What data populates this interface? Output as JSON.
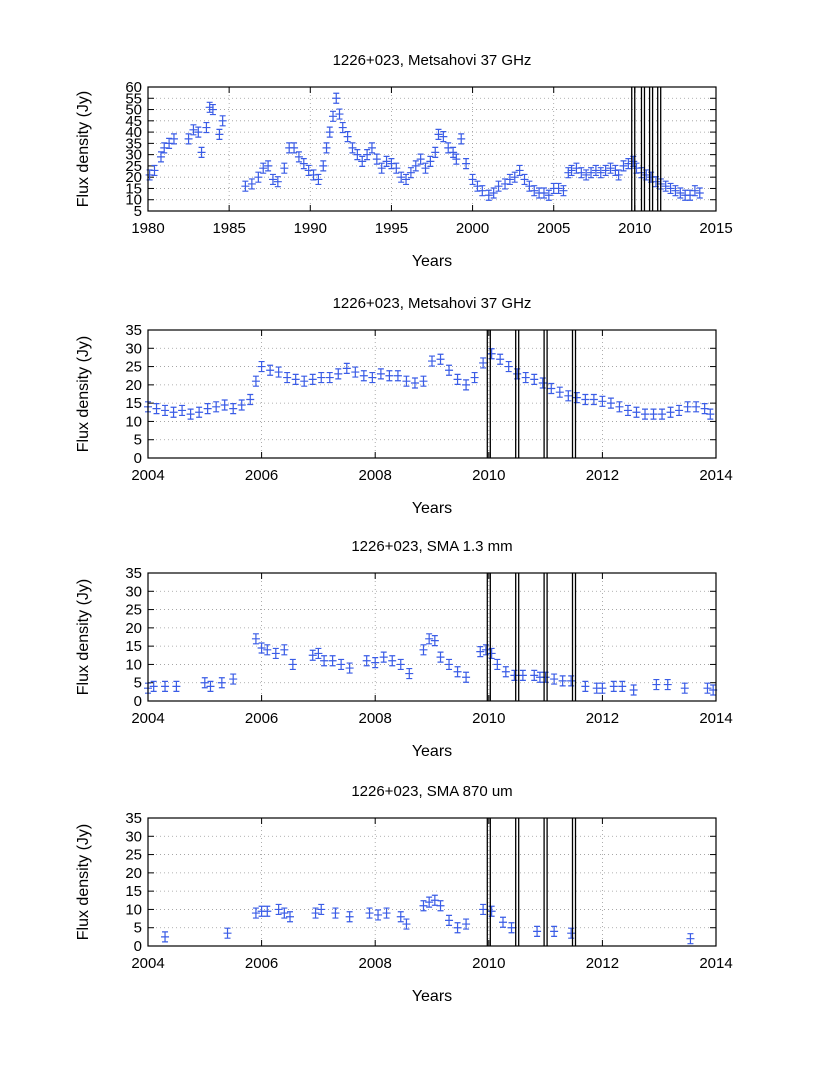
{
  "colors": {
    "data": "#3a5ce6",
    "axis": "#000000",
    "grid": "#9a9a9a",
    "event_line": "#000000"
  },
  "chart_data": [
    {
      "type": "scatter",
      "title": "1226+023, Metsahovi 37 GHz",
      "xlabel": "Years",
      "ylabel": "Flux density (Jy)",
      "xlim": [
        1980,
        2015
      ],
      "ylim": [
        5,
        60
      ],
      "xticks": [
        1980,
        1985,
        1990,
        1995,
        2000,
        2005,
        2010,
        2015
      ],
      "yticks": [
        5,
        10,
        15,
        20,
        25,
        30,
        35,
        40,
        45,
        50,
        55,
        60
      ],
      "grid": true,
      "event_lines": [
        2009.9,
        2010.5,
        2011.0,
        2011.5
      ],
      "series": [
        {
          "name": "Metsahovi 37 GHz",
          "x": [
            1980.1,
            1980.4,
            1980.8,
            1981.0,
            1981.3,
            1981.6,
            1982.5,
            1982.8,
            1983.1,
            1983.3,
            1983.6,
            1983.8,
            1984.0,
            1984.4,
            1984.6,
            1986.0,
            1986.4,
            1986.8,
            1987.1,
            1987.4,
            1987.7,
            1988.0,
            1988.4,
            1988.7,
            1989.0,
            1989.3,
            1989.6,
            1989.9,
            1990.2,
            1990.5,
            1990.8,
            1991.0,
            1991.2,
            1991.4,
            1991.6,
            1991.8,
            1992.0,
            1992.3,
            1992.6,
            1992.9,
            1993.2,
            1993.5,
            1993.8,
            1994.1,
            1994.4,
            1994.7,
            1995.0,
            1995.3,
            1995.6,
            1995.9,
            1996.2,
            1996.5,
            1996.8,
            1997.1,
            1997.4,
            1997.7,
            1997.9,
            1998.2,
            1998.5,
            1998.8,
            1999.0,
            1999.3,
            1999.6,
            2000.0,
            2000.3,
            2000.6,
            2001.0,
            2001.3,
            2001.6,
            2002.0,
            2002.3,
            2002.6,
            2002.9,
            2003.2,
            2003.5,
            2003.8,
            2004.1,
            2004.4,
            2004.7,
            2005.0,
            2005.3,
            2005.6,
            2005.9,
            2006.1,
            2006.4,
            2006.7,
            2007.0,
            2007.3,
            2007.6,
            2007.9,
            2008.2,
            2008.5,
            2008.8,
            2009.0,
            2009.3,
            2009.6,
            2009.9,
            2010.1,
            2010.4,
            2010.7,
            2011.0,
            2011.3,
            2011.6,
            2011.9,
            2012.2,
            2012.5,
            2012.8,
            2013.1,
            2013.4,
            2013.7,
            2014.0
          ],
          "y": [
            21,
            23,
            29,
            33,
            35,
            37,
            37,
            41,
            40,
            31,
            42,
            51,
            50,
            39,
            45,
            16,
            17,
            20,
            24,
            25,
            19,
            18,
            24,
            33,
            33,
            29,
            26,
            23,
            21,
            19,
            25,
            33,
            40,
            47,
            55,
            48,
            42,
            38,
            33,
            30,
            27,
            30,
            33,
            28,
            24,
            27,
            26,
            24,
            20,
            19,
            22,
            25,
            28,
            24,
            27,
            31,
            39,
            38,
            33,
            31,
            28,
            37,
            26,
            19,
            16,
            14,
            12,
            13,
            16,
            17,
            19,
            20,
            23,
            19,
            16,
            14,
            13,
            13,
            12,
            15,
            15,
            14,
            22,
            23,
            24,
            22,
            21,
            22,
            23,
            22,
            23,
            24,
            23,
            21,
            25,
            26,
            27,
            24,
            22,
            21,
            20,
            18,
            17,
            16,
            15,
            14,
            13,
            12,
            12,
            14,
            13
          ]
        }
      ]
    },
    {
      "type": "scatter",
      "title": "1226+023, Metsahovi 37 GHz",
      "xlabel": "Years",
      "ylabel": "Flux density (Jy)",
      "xlim": [
        2004,
        2014
      ],
      "ylim": [
        0,
        35
      ],
      "xticks": [
        2004,
        2006,
        2008,
        2010,
        2012,
        2014
      ],
      "yticks": [
        0,
        5,
        10,
        15,
        20,
        25,
        30,
        35
      ],
      "grid": true,
      "event_lines": [
        2010.0,
        2010.5,
        2011.0,
        2011.5
      ],
      "series": [
        {
          "name": "Metsahovi 37 GHz",
          "x": [
            2004.0,
            2004.15,
            2004.3,
            2004.45,
            2004.6,
            2004.75,
            2004.9,
            2005.05,
            2005.2,
            2005.35,
            2005.5,
            2005.65,
            2005.8,
            2005.9,
            2006.0,
            2006.15,
            2006.3,
            2006.45,
            2006.6,
            2006.75,
            2006.9,
            2007.05,
            2007.2,
            2007.35,
            2007.5,
            2007.65,
            2007.8,
            2007.95,
            2008.1,
            2008.25,
            2008.4,
            2008.55,
            2008.7,
            2008.85,
            2009.0,
            2009.15,
            2009.3,
            2009.45,
            2009.6,
            2009.75,
            2009.9,
            2010.05,
            2010.2,
            2010.35,
            2010.5,
            2010.65,
            2010.8,
            2010.95,
            2011.1,
            2011.25,
            2011.4,
            2011.55,
            2011.7,
            2011.85,
            2012.0,
            2012.15,
            2012.3,
            2012.45,
            2012.6,
            2012.75,
            2012.9,
            2013.05,
            2013.2,
            2013.35,
            2013.5,
            2013.65,
            2013.8,
            2013.9
          ],
          "y": [
            14,
            13.5,
            13,
            12.5,
            13,
            12,
            12.5,
            13.5,
            14,
            14.5,
            13.5,
            14.5,
            16,
            21,
            25,
            24,
            23.5,
            22,
            21.5,
            21,
            21.5,
            22,
            22,
            23,
            24.5,
            23.5,
            22.5,
            22,
            23,
            22.5,
            22.5,
            21,
            20.5,
            21,
            26.5,
            27,
            24,
            21.5,
            20,
            22,
            26,
            28.5,
            27,
            25,
            23,
            22,
            21.5,
            20.5,
            19,
            18,
            17,
            16.5,
            16,
            16,
            15.5,
            15,
            14,
            13,
            12.5,
            12,
            12,
            12,
            12.5,
            13,
            14,
            14,
            13.5,
            12
          ]
        }
      ]
    },
    {
      "type": "scatter",
      "title": "1226+023, SMA 1.3 mm",
      "xlabel": "Years",
      "ylabel": "Flux density (Jy)",
      "xlim": [
        2004,
        2014
      ],
      "ylim": [
        0,
        35
      ],
      "xticks": [
        2004,
        2006,
        2008,
        2010,
        2012,
        2014
      ],
      "yticks": [
        0,
        5,
        10,
        15,
        20,
        25,
        30,
        35
      ],
      "grid": true,
      "event_lines": [
        2010.0,
        2010.5,
        2011.0,
        2011.5
      ],
      "series": [
        {
          "name": "SMA 1.3 mm",
          "x": [
            2004.0,
            2004.1,
            2004.3,
            2004.5,
            2005.0,
            2005.1,
            2005.3,
            2005.5,
            2005.9,
            2006.0,
            2006.1,
            2006.25,
            2006.4,
            2006.55,
            2006.9,
            2007.0,
            2007.1,
            2007.25,
            2007.4,
            2007.55,
            2007.85,
            2008.0,
            2008.15,
            2008.3,
            2008.45,
            2008.6,
            2008.85,
            2008.95,
            2009.05,
            2009.15,
            2009.3,
            2009.45,
            2009.6,
            2009.85,
            2009.95,
            2010.05,
            2010.15,
            2010.3,
            2010.45,
            2010.6,
            2010.8,
            2010.9,
            2011.0,
            2011.15,
            2011.3,
            2011.45,
            2011.7,
            2011.9,
            2012.0,
            2012.2,
            2012.35,
            2012.55,
            2012.95,
            2013.15,
            2013.45,
            2013.85,
            2013.95
          ],
          "y": [
            3.5,
            4,
            4,
            4,
            5,
            4,
            5,
            6,
            17,
            14.5,
            14,
            13,
            14,
            10,
            12.5,
            13,
            11,
            11,
            10,
            9,
            11,
            10.5,
            12,
            11,
            10,
            7.5,
            14,
            17,
            16.5,
            12,
            10,
            8,
            6.5,
            13.5,
            14,
            13,
            10,
            8,
            7,
            7,
            7,
            6.5,
            6.5,
            6,
            5.5,
            5.5,
            4,
            3.5,
            3.5,
            4,
            4,
            3,
            4.5,
            4.5,
            3.5,
            3.5,
            3
          ]
        }
      ]
    },
    {
      "type": "scatter",
      "title": "1226+023, SMA 870 um",
      "xlabel": "Years",
      "ylabel": "Flux density (Jy)",
      "xlim": [
        2004,
        2014
      ],
      "ylim": [
        0,
        35
      ],
      "xticks": [
        2004,
        2006,
        2008,
        2010,
        2012,
        2014
      ],
      "yticks": [
        0,
        5,
        10,
        15,
        20,
        25,
        30,
        35
      ],
      "grid": true,
      "event_lines": [
        2010.0,
        2010.5,
        2011.0,
        2011.5
      ],
      "series": [
        {
          "name": "SMA 870 um",
          "x": [
            2004.3,
            2005.4,
            2005.9,
            2006.0,
            2006.1,
            2006.3,
            2006.4,
            2006.5,
            2006.95,
            2007.05,
            2007.3,
            2007.55,
            2007.9,
            2008.05,
            2008.2,
            2008.45,
            2008.55,
            2008.85,
            2008.95,
            2009.05,
            2009.15,
            2009.3,
            2009.45,
            2009.6,
            2009.9,
            2010.05,
            2010.25,
            2010.4,
            2010.85,
            2011.15,
            2011.45,
            2013.55
          ],
          "y": [
            2.5,
            3.5,
            9,
            9.5,
            9.5,
            10,
            9,
            8,
            9,
            10,
            9,
            8,
            9,
            8.5,
            9,
            8,
            6,
            11,
            12,
            12.5,
            11,
            7,
            5,
            6,
            10,
            9.5,
            6.5,
            5,
            4,
            4,
            3.5,
            2
          ]
        }
      ]
    }
  ]
}
